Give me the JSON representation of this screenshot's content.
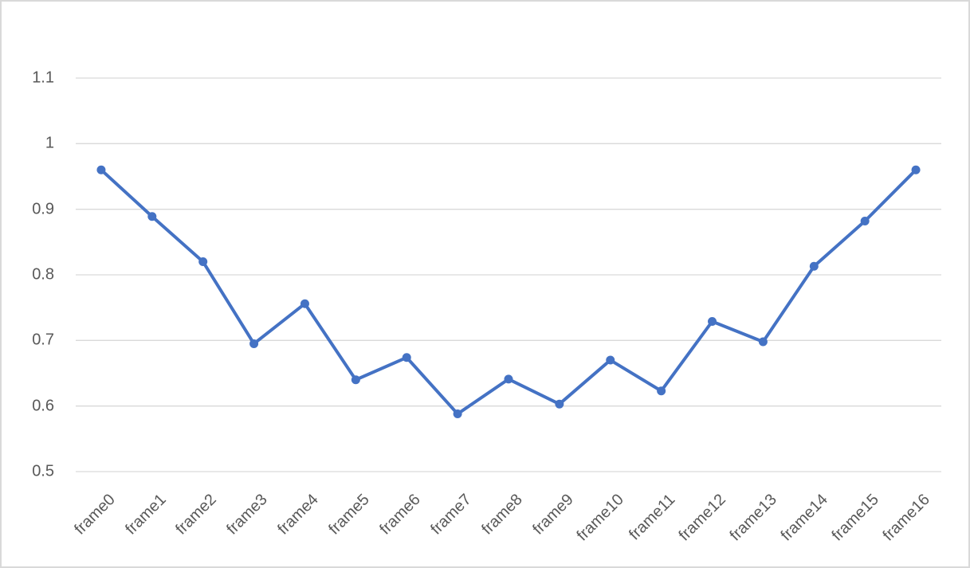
{
  "chart_data": {
    "type": "line",
    "title": "",
    "xlabel": "",
    "ylabel": "",
    "categories": [
      "frame0",
      "frame1",
      "frame2",
      "frame3",
      "frame4",
      "frame5",
      "frame6",
      "frame7",
      "frame8",
      "frame9",
      "frame10",
      "frame11",
      "frame12",
      "frame13",
      "frame14",
      "frame15",
      "frame16"
    ],
    "values": [
      0.96,
      0.889,
      0.82,
      0.695,
      0.756,
      0.64,
      0.674,
      0.588,
      0.641,
      0.603,
      0.67,
      0.623,
      0.729,
      0.698,
      0.813,
      0.882,
      0.96
    ],
    "ylim": [
      0.5,
      1.1
    ],
    "yticks": [
      0.5,
      0.6,
      0.7,
      0.8,
      0.9,
      1,
      1.1
    ],
    "ytick_labels": [
      "0.5",
      "0.6",
      "0.7",
      "0.8",
      "0.9",
      "1",
      "1.1"
    ],
    "grid": "horizontal",
    "legend_position": "none",
    "marker": "circle",
    "x_label_rotation_deg": 45
  },
  "colors": {
    "line": "#4472C4",
    "marker": "#4472C4",
    "gridline": "#D9D9D9",
    "tick_text": "#595959",
    "frame_border": "#D9D9D9",
    "background": "#FFFFFF"
  }
}
